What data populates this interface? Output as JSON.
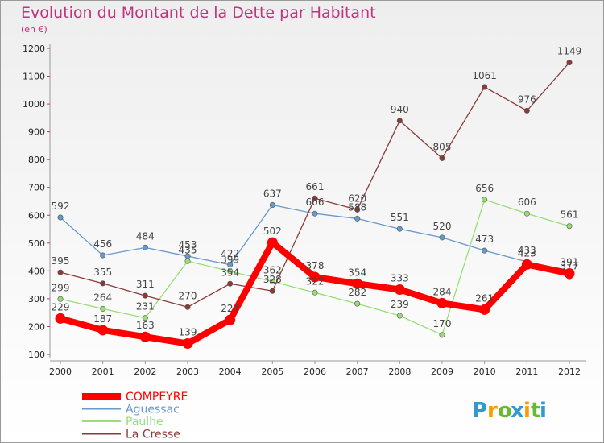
{
  "chart_data": {
    "type": "line",
    "title": "Evolution du Montant de la Dette par Habitant",
    "subtitle": "(en €)",
    "x": [
      "2000",
      "2001",
      "2002",
      "2003",
      "2004",
      "2005",
      "2006",
      "2007",
      "2008",
      "2009",
      "2010",
      "2011",
      "2012"
    ],
    "ylim": [
      100,
      1200
    ],
    "yticks": [
      100,
      200,
      300,
      400,
      500,
      600,
      700,
      800,
      900,
      1000,
      1100,
      1200
    ],
    "grid": false,
    "legend_position": "bottom-left",
    "series": [
      {
        "name": "COMPEYRE",
        "color": "#ff0000",
        "values": [
          229,
          187,
          163,
          139,
          224,
          502,
          378,
          354,
          333,
          284,
          261,
          423,
          391
        ]
      },
      {
        "name": "Aguessac",
        "color": "#6699cc",
        "values": [
          592,
          456,
          484,
          453,
          422,
          637,
          606,
          588,
          551,
          520,
          473,
          433,
          377
        ]
      },
      {
        "name": "Paulhe",
        "color": "#99dd77",
        "values": [
          299,
          264,
          231,
          435,
          399,
          362,
          322,
          282,
          239,
          170,
          656,
          606,
          561
        ]
      },
      {
        "name": "La Cresse",
        "color": "#8b3a3a",
        "values": [
          395,
          355,
          311,
          270,
          354,
          328,
          661,
          620,
          940,
          805,
          1061,
          976,
          1149
        ]
      }
    ]
  },
  "brand": {
    "letters": [
      "P",
      "r",
      "o",
      "x",
      "i",
      "t",
      "i"
    ],
    "colors": [
      "#3399cc",
      "#ff9900",
      "#66bb33",
      "#3399cc",
      "#ff9900",
      "#66bb33",
      "#3399cc"
    ]
  }
}
